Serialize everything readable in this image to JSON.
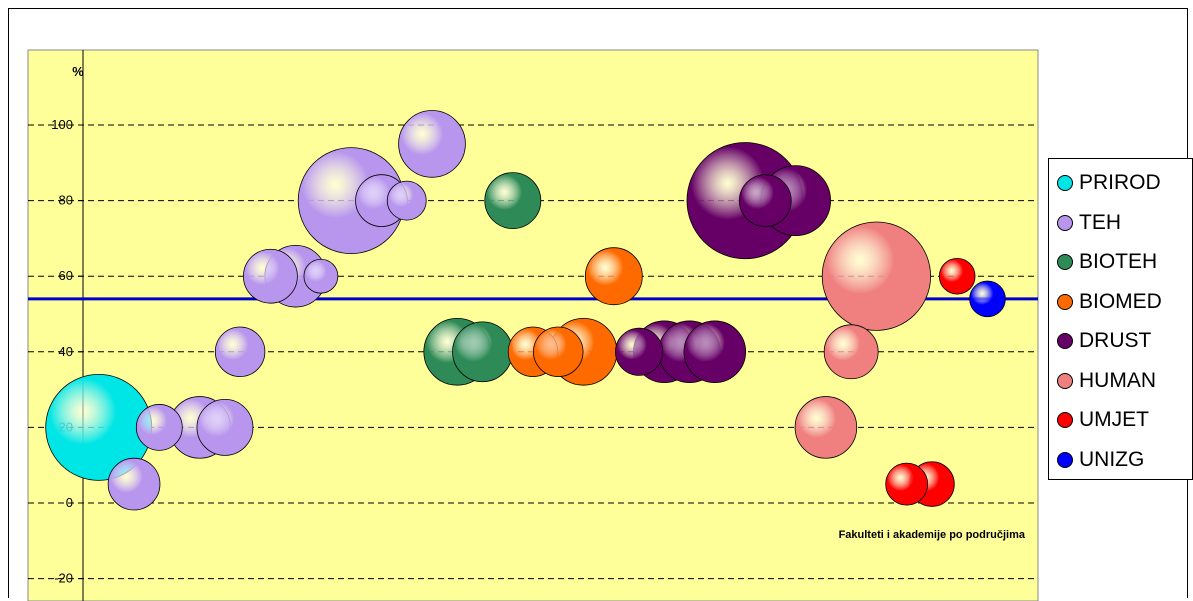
{
  "chart_data": {
    "type": "scatter",
    "subtype": "bubble",
    "ylabel": "%",
    "annotation": "Fakulteti i akademije po područjima",
    "ylim": [
      -20,
      115
    ],
    "yticks": [
      -20,
      0,
      20,
      40,
      60,
      80,
      100
    ],
    "grid": true,
    "legend_position": "right",
    "plot_background": "#ffff99",
    "reference_line": {
      "series": "UNIZG",
      "y": 54,
      "color": "#0000cc"
    },
    "series": [
      {
        "name": "PRIROD",
        "color": "#00e5e5",
        "points": [
          {
            "x": 7,
            "y": 20,
            "size": 100
          }
        ]
      },
      {
        "name": "TEH",
        "color": "#b896ee",
        "points": [
          {
            "x": 10.5,
            "y": 5,
            "size": 20
          },
          {
            "x": 13,
            "y": 20,
            "size": 15
          },
          {
            "x": 17,
            "y": 20,
            "size": 30
          },
          {
            "x": 19.5,
            "y": 20,
            "size": 24
          },
          {
            "x": 21,
            "y": 40,
            "size": 18
          },
          {
            "x": 24,
            "y": 60,
            "size": 22
          },
          {
            "x": 26.5,
            "y": 60,
            "size": 30
          },
          {
            "x": 29,
            "y": 60,
            "size": 7
          },
          {
            "x": 32,
            "y": 80,
            "size": 100
          },
          {
            "x": 35,
            "y": 80,
            "size": 20
          },
          {
            "x": 37.5,
            "y": 80,
            "size": 10
          },
          {
            "x": 40,
            "y": 95,
            "size": 36
          }
        ]
      },
      {
        "name": "BIOTEH",
        "color": "#2e8b57",
        "points": [
          {
            "x": 42.5,
            "y": 40,
            "size": 36
          },
          {
            "x": 45,
            "y": 40,
            "size": 28
          },
          {
            "x": 48,
            "y": 80,
            "size": 24
          }
        ]
      },
      {
        "name": "BIOMED",
        "color": "#ff6a00",
        "points": [
          {
            "x": 50,
            "y": 40,
            "size": 18
          },
          {
            "x": 52.5,
            "y": 40,
            "size": 18
          },
          {
            "x": 55,
            "y": 40,
            "size": 36
          },
          {
            "x": 58,
            "y": 60,
            "size": 25
          }
        ]
      },
      {
        "name": "DRUST",
        "color": "#660066",
        "points": [
          {
            "x": 60.5,
            "y": 40,
            "size": 16
          },
          {
            "x": 63,
            "y": 40,
            "size": 30
          },
          {
            "x": 65.5,
            "y": 40,
            "size": 30
          },
          {
            "x": 68,
            "y": 40,
            "size": 30
          },
          {
            "x": 71,
            "y": 80,
            "size": 122
          },
          {
            "x": 73,
            "y": 80,
            "size": 20
          },
          {
            "x": 76,
            "y": 80,
            "size": 40
          }
        ]
      },
      {
        "name": "HUMAN",
        "color": "#f08080",
        "points": [
          {
            "x": 79,
            "y": 20,
            "size": 30
          },
          {
            "x": 81.5,
            "y": 40,
            "size": 22
          },
          {
            "x": 84,
            "y": 60,
            "size": 105
          }
        ]
      },
      {
        "name": "UMJET",
        "color": "#ff0000",
        "points": [
          {
            "x": 87,
            "y": 5,
            "size": 12
          },
          {
            "x": 89.5,
            "y": 5,
            "size": 14
          },
          {
            "x": 92,
            "y": 60,
            "size": 8
          }
        ]
      },
      {
        "name": "UNIZG",
        "color": "#0000ff",
        "points": [
          {
            "x": 95,
            "y": 54,
            "size": 8
          }
        ]
      }
    ]
  }
}
